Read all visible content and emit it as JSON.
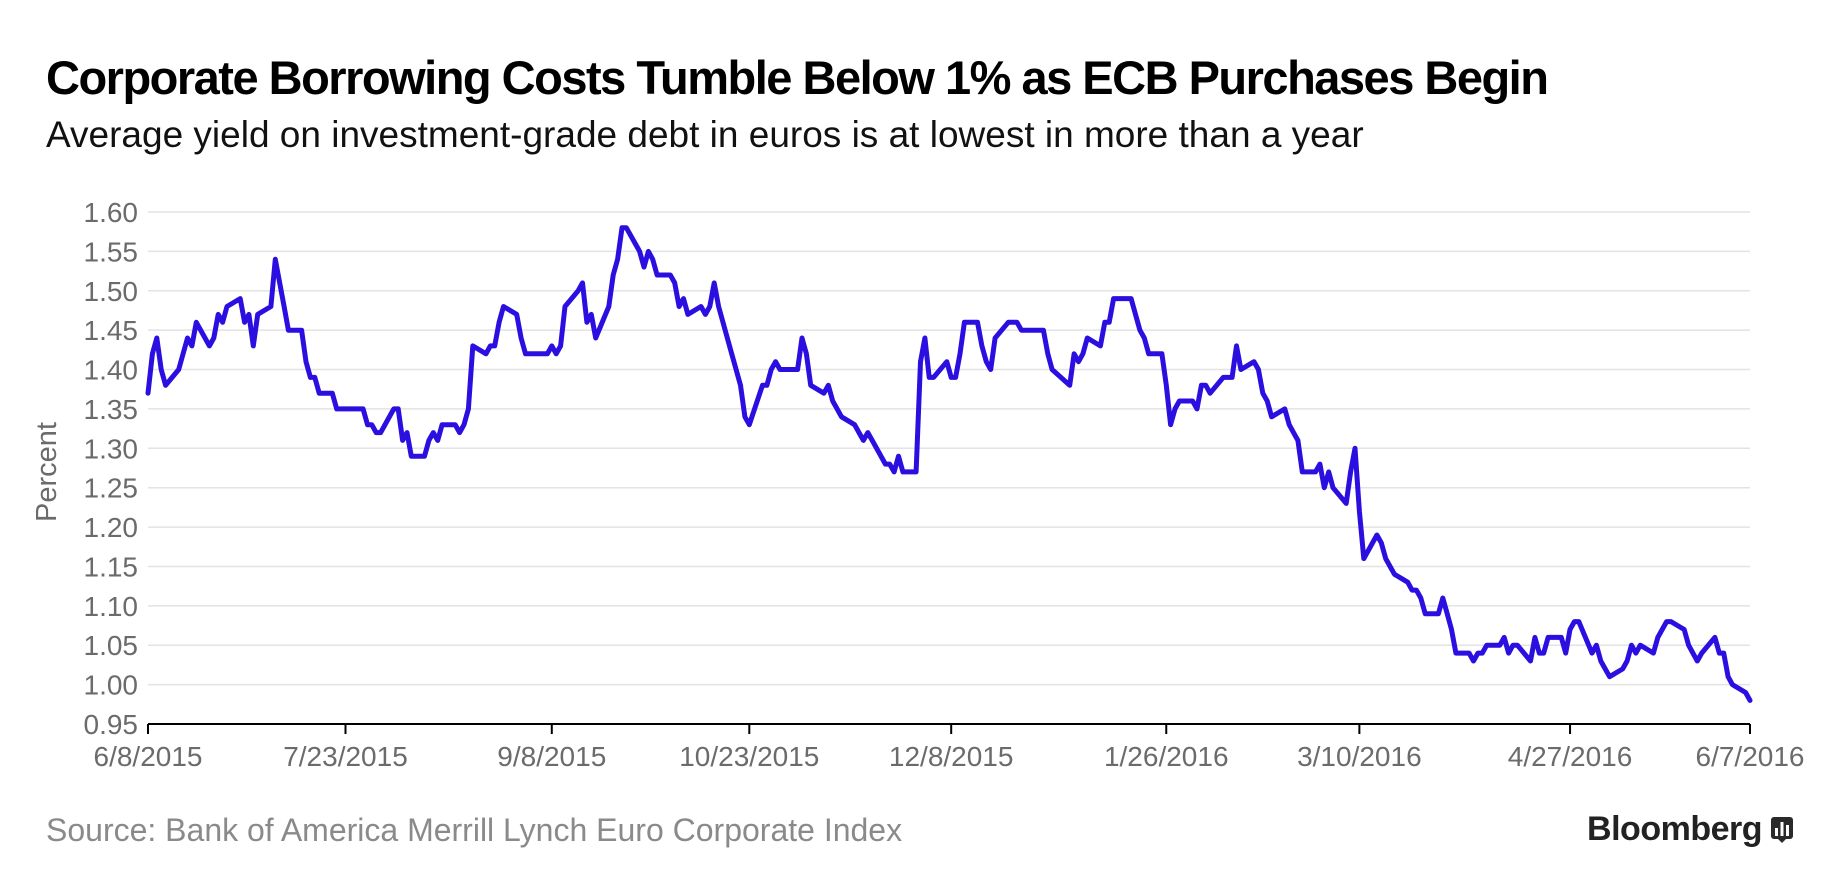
{
  "header": {
    "title": "Corporate Borrowing Costs Tumble Below 1% as ECB Purchases Begin",
    "subtitle": "Average yield on investment-grade debt in euros is at lowest in more than a year"
  },
  "footer": {
    "source": "Source: Bank of America Merrill Lynch Euro Corporate Index",
    "brand": "Bloomberg",
    "brand_icon": "bloomberg-chart-icon"
  },
  "colors": {
    "line": "#2b0fe0",
    "grid": "#e3e3e3",
    "axis": "#000000",
    "tick_text": "#6b6b6b"
  },
  "chart_data": {
    "type": "line",
    "title": "Corporate Borrowing Costs Tumble Below 1% as ECB Purchases Begin",
    "subtitle": "Average yield on investment-grade debt in euros is at lowest in more than a year",
    "xlabel": "",
    "ylabel": "Percent",
    "ylim": [
      0.95,
      1.6
    ],
    "yticks": [
      "0.95",
      "1.00",
      "1.05",
      "1.10",
      "1.15",
      "1.20",
      "1.25",
      "1.30",
      "1.35",
      "1.40",
      "1.45",
      "1.50",
      "1.55",
      "1.60"
    ],
    "xlim": [
      "2015-06-08",
      "2016-06-07"
    ],
    "xticks": [
      {
        "label": "6/8/2015",
        "date": "2015-06-08"
      },
      {
        "label": "7/23/2015",
        "date": "2015-07-23"
      },
      {
        "label": "9/8/2015",
        "date": "2015-09-08"
      },
      {
        "label": "10/23/2015",
        "date": "2015-10-23"
      },
      {
        "label": "12/8/2015",
        "date": "2015-12-08"
      },
      {
        "label": "1/26/2016",
        "date": "2016-01-26"
      },
      {
        "label": "3/10/2016",
        "date": "2016-03-10"
      },
      {
        "label": "4/27/2016",
        "date": "2016-04-27"
      },
      {
        "label": "6/7/2016",
        "date": "2016-06-07"
      }
    ],
    "grid": true,
    "legend": "none",
    "series": [
      {
        "points": [
          [
            "2015-06-08",
            1.37
          ],
          [
            "2015-06-09",
            1.42
          ],
          [
            "2015-06-10",
            1.44
          ],
          [
            "2015-06-11",
            1.4
          ],
          [
            "2015-06-12",
            1.38
          ],
          [
            "2015-06-15",
            1.4
          ],
          [
            "2015-06-17",
            1.44
          ],
          [
            "2015-06-18",
            1.43
          ],
          [
            "2015-06-19",
            1.46
          ],
          [
            "2015-06-22",
            1.43
          ],
          [
            "2015-06-23",
            1.44
          ],
          [
            "2015-06-24",
            1.47
          ],
          [
            "2015-06-25",
            1.46
          ],
          [
            "2015-06-26",
            1.48
          ],
          [
            "2015-06-29",
            1.49
          ],
          [
            "2015-06-30",
            1.46
          ],
          [
            "2015-07-01",
            1.47
          ],
          [
            "2015-07-02",
            1.43
          ],
          [
            "2015-07-03",
            1.47
          ],
          [
            "2015-07-06",
            1.48
          ],
          [
            "2015-07-07",
            1.54
          ],
          [
            "2015-07-08",
            1.51
          ],
          [
            "2015-07-09",
            1.48
          ],
          [
            "2015-07-10",
            1.45
          ],
          [
            "2015-07-13",
            1.45
          ],
          [
            "2015-07-14",
            1.41
          ],
          [
            "2015-07-15",
            1.39
          ],
          [
            "2015-07-16",
            1.39
          ],
          [
            "2015-07-17",
            1.37
          ],
          [
            "2015-07-20",
            1.37
          ],
          [
            "2015-07-21",
            1.35
          ],
          [
            "2015-07-22",
            1.35
          ],
          [
            "2015-07-23",
            1.35
          ],
          [
            "2015-07-24",
            1.35
          ],
          [
            "2015-07-27",
            1.35
          ],
          [
            "2015-07-28",
            1.33
          ],
          [
            "2015-07-29",
            1.33
          ],
          [
            "2015-07-30",
            1.32
          ],
          [
            "2015-07-31",
            1.32
          ],
          [
            "2015-08-03",
            1.35
          ],
          [
            "2015-08-04",
            1.35
          ],
          [
            "2015-08-05",
            1.31
          ],
          [
            "2015-08-06",
            1.32
          ],
          [
            "2015-08-07",
            1.29
          ],
          [
            "2015-08-10",
            1.29
          ],
          [
            "2015-08-11",
            1.31
          ],
          [
            "2015-08-12",
            1.32
          ],
          [
            "2015-08-13",
            1.31
          ],
          [
            "2015-08-14",
            1.33
          ],
          [
            "2015-08-17",
            1.33
          ],
          [
            "2015-08-18",
            1.32
          ],
          [
            "2015-08-19",
            1.33
          ],
          [
            "2015-08-20",
            1.35
          ],
          [
            "2015-08-21",
            1.43
          ],
          [
            "2015-08-24",
            1.42
          ],
          [
            "2015-08-25",
            1.43
          ],
          [
            "2015-08-26",
            1.43
          ],
          [
            "2015-08-27",
            1.46
          ],
          [
            "2015-08-28",
            1.48
          ],
          [
            "2015-08-31",
            1.47
          ],
          [
            "2015-09-01",
            1.44
          ],
          [
            "2015-09-02",
            1.42
          ],
          [
            "2015-09-03",
            1.42
          ],
          [
            "2015-09-04",
            1.42
          ],
          [
            "2015-09-07",
            1.42
          ],
          [
            "2015-09-08",
            1.43
          ],
          [
            "2015-09-09",
            1.42
          ],
          [
            "2015-09-10",
            1.43
          ],
          [
            "2015-09-11",
            1.48
          ],
          [
            "2015-09-14",
            1.5
          ],
          [
            "2015-09-15",
            1.51
          ],
          [
            "2015-09-16",
            1.46
          ],
          [
            "2015-09-17",
            1.47
          ],
          [
            "2015-09-18",
            1.44
          ],
          [
            "2015-09-21",
            1.48
          ],
          [
            "2015-09-22",
            1.52
          ],
          [
            "2015-09-23",
            1.54
          ],
          [
            "2015-09-24",
            1.58
          ],
          [
            "2015-09-25",
            1.58
          ],
          [
            "2015-09-28",
            1.55
          ],
          [
            "2015-09-29",
            1.53
          ],
          [
            "2015-09-30",
            1.55
          ],
          [
            "2015-10-01",
            1.54
          ],
          [
            "2015-10-02",
            1.52
          ],
          [
            "2015-10-05",
            1.52
          ],
          [
            "2015-10-06",
            1.51
          ],
          [
            "2015-10-07",
            1.48
          ],
          [
            "2015-10-08",
            1.49
          ],
          [
            "2015-10-09",
            1.47
          ],
          [
            "2015-10-12",
            1.48
          ],
          [
            "2015-10-13",
            1.47
          ],
          [
            "2015-10-14",
            1.48
          ],
          [
            "2015-10-15",
            1.51
          ],
          [
            "2015-10-16",
            1.48
          ],
          [
            "2015-10-19",
            1.42
          ],
          [
            "2015-10-20",
            1.4
          ],
          [
            "2015-10-21",
            1.38
          ],
          [
            "2015-10-22",
            1.34
          ],
          [
            "2015-10-23",
            1.33
          ],
          [
            "2015-10-26",
            1.38
          ],
          [
            "2015-10-27",
            1.38
          ],
          [
            "2015-10-28",
            1.4
          ],
          [
            "2015-10-29",
            1.41
          ],
          [
            "2015-10-30",
            1.4
          ],
          [
            "2015-11-02",
            1.4
          ],
          [
            "2015-11-03",
            1.4
          ],
          [
            "2015-11-04",
            1.44
          ],
          [
            "2015-11-05",
            1.42
          ],
          [
            "2015-11-06",
            1.38
          ],
          [
            "2015-11-09",
            1.37
          ],
          [
            "2015-11-10",
            1.38
          ],
          [
            "2015-11-11",
            1.36
          ],
          [
            "2015-11-12",
            1.35
          ],
          [
            "2015-11-13",
            1.34
          ],
          [
            "2015-11-16",
            1.33
          ],
          [
            "2015-11-17",
            1.32
          ],
          [
            "2015-11-18",
            1.31
          ],
          [
            "2015-11-19",
            1.32
          ],
          [
            "2015-11-20",
            1.31
          ],
          [
            "2015-11-23",
            1.28
          ],
          [
            "2015-11-24",
            1.28
          ],
          [
            "2015-11-25",
            1.27
          ],
          [
            "2015-11-26",
            1.29
          ],
          [
            "2015-11-27",
            1.27
          ],
          [
            "2015-11-30",
            1.27
          ],
          [
            "2015-12-01",
            1.41
          ],
          [
            "2015-12-02",
            1.44
          ],
          [
            "2015-12-03",
            1.39
          ],
          [
            "2015-12-04",
            1.39
          ],
          [
            "2015-12-07",
            1.41
          ],
          [
            "2015-12-08",
            1.39
          ],
          [
            "2015-12-09",
            1.39
          ],
          [
            "2015-12-10",
            1.42
          ],
          [
            "2015-12-11",
            1.46
          ],
          [
            "2015-12-14",
            1.46
          ],
          [
            "2015-12-15",
            1.43
          ],
          [
            "2015-12-16",
            1.41
          ],
          [
            "2015-12-17",
            1.4
          ],
          [
            "2015-12-18",
            1.44
          ],
          [
            "2015-12-21",
            1.46
          ],
          [
            "2015-12-22",
            1.46
          ],
          [
            "2015-12-23",
            1.46
          ],
          [
            "2015-12-24",
            1.45
          ],
          [
            "2015-12-28",
            1.45
          ],
          [
            "2015-12-29",
            1.45
          ],
          [
            "2015-12-30",
            1.42
          ],
          [
            "2015-12-31",
            1.4
          ],
          [
            "2016-01-04",
            1.38
          ],
          [
            "2016-01-05",
            1.42
          ],
          [
            "2016-01-06",
            1.41
          ],
          [
            "2016-01-07",
            1.42
          ],
          [
            "2016-01-08",
            1.44
          ],
          [
            "2016-01-11",
            1.43
          ],
          [
            "2016-01-12",
            1.46
          ],
          [
            "2016-01-13",
            1.46
          ],
          [
            "2016-01-14",
            1.49
          ],
          [
            "2016-01-15",
            1.49
          ],
          [
            "2016-01-18",
            1.49
          ],
          [
            "2016-01-19",
            1.47
          ],
          [
            "2016-01-20",
            1.45
          ],
          [
            "2016-01-21",
            1.44
          ],
          [
            "2016-01-22",
            1.42
          ],
          [
            "2016-01-25",
            1.42
          ],
          [
            "2016-01-26",
            1.38
          ],
          [
            "2016-01-27",
            1.33
          ],
          [
            "2016-01-28",
            1.35
          ],
          [
            "2016-01-29",
            1.36
          ],
          [
            "2016-02-01",
            1.36
          ],
          [
            "2016-02-02",
            1.35
          ],
          [
            "2016-02-03",
            1.38
          ],
          [
            "2016-02-04",
            1.38
          ],
          [
            "2016-02-05",
            1.37
          ],
          [
            "2016-02-08",
            1.39
          ],
          [
            "2016-02-09",
            1.39
          ],
          [
            "2016-02-10",
            1.39
          ],
          [
            "2016-02-11",
            1.43
          ],
          [
            "2016-02-12",
            1.4
          ],
          [
            "2016-02-15",
            1.41
          ],
          [
            "2016-02-16",
            1.4
          ],
          [
            "2016-02-17",
            1.37
          ],
          [
            "2016-02-18",
            1.36
          ],
          [
            "2016-02-19",
            1.34
          ],
          [
            "2016-02-22",
            1.35
          ],
          [
            "2016-02-23",
            1.33
          ],
          [
            "2016-02-24",
            1.32
          ],
          [
            "2016-02-25",
            1.31
          ],
          [
            "2016-02-26",
            1.27
          ],
          [
            "2016-02-29",
            1.27
          ],
          [
            "2016-03-01",
            1.28
          ],
          [
            "2016-03-02",
            1.25
          ],
          [
            "2016-03-03",
            1.27
          ],
          [
            "2016-03-04",
            1.25
          ],
          [
            "2016-03-07",
            1.23
          ],
          [
            "2016-03-08",
            1.27
          ],
          [
            "2016-03-09",
            1.3
          ],
          [
            "2016-03-10",
            1.22
          ],
          [
            "2016-03-11",
            1.16
          ],
          [
            "2016-03-14",
            1.19
          ],
          [
            "2016-03-15",
            1.18
          ],
          [
            "2016-03-16",
            1.16
          ],
          [
            "2016-03-17",
            1.15
          ],
          [
            "2016-03-18",
            1.14
          ],
          [
            "2016-03-21",
            1.13
          ],
          [
            "2016-03-22",
            1.12
          ],
          [
            "2016-03-23",
            1.12
          ],
          [
            "2016-03-24",
            1.11
          ],
          [
            "2016-03-25",
            1.09
          ],
          [
            "2016-03-28",
            1.09
          ],
          [
            "2016-03-29",
            1.11
          ],
          [
            "2016-03-30",
            1.09
          ],
          [
            "2016-03-31",
            1.07
          ],
          [
            "2016-04-01",
            1.04
          ],
          [
            "2016-04-04",
            1.04
          ],
          [
            "2016-04-05",
            1.03
          ],
          [
            "2016-04-06",
            1.04
          ],
          [
            "2016-04-07",
            1.04
          ],
          [
            "2016-04-08",
            1.05
          ],
          [
            "2016-04-11",
            1.05
          ],
          [
            "2016-04-12",
            1.06
          ],
          [
            "2016-04-13",
            1.04
          ],
          [
            "2016-04-14",
            1.05
          ],
          [
            "2016-04-15",
            1.05
          ],
          [
            "2016-04-18",
            1.03
          ],
          [
            "2016-04-19",
            1.06
          ],
          [
            "2016-04-20",
            1.04
          ],
          [
            "2016-04-21",
            1.04
          ],
          [
            "2016-04-22",
            1.06
          ],
          [
            "2016-04-25",
            1.06
          ],
          [
            "2016-04-26",
            1.04
          ],
          [
            "2016-04-27",
            1.07
          ],
          [
            "2016-04-28",
            1.08
          ],
          [
            "2016-04-29",
            1.08
          ],
          [
            "2016-05-02",
            1.04
          ],
          [
            "2016-05-03",
            1.05
          ],
          [
            "2016-05-04",
            1.03
          ],
          [
            "2016-05-05",
            1.02
          ],
          [
            "2016-05-06",
            1.01
          ],
          [
            "2016-05-09",
            1.02
          ],
          [
            "2016-05-10",
            1.03
          ],
          [
            "2016-05-11",
            1.05
          ],
          [
            "2016-05-12",
            1.04
          ],
          [
            "2016-05-13",
            1.05
          ],
          [
            "2016-05-16",
            1.04
          ],
          [
            "2016-05-17",
            1.06
          ],
          [
            "2016-05-18",
            1.07
          ],
          [
            "2016-05-19",
            1.08
          ],
          [
            "2016-05-20",
            1.08
          ],
          [
            "2016-05-23",
            1.07
          ],
          [
            "2016-05-24",
            1.05
          ],
          [
            "2016-05-25",
            1.04
          ],
          [
            "2016-05-26",
            1.03
          ],
          [
            "2016-05-27",
            1.04
          ],
          [
            "2016-05-30",
            1.06
          ],
          [
            "2016-05-31",
            1.04
          ],
          [
            "2016-06-01",
            1.04
          ],
          [
            "2016-06-02",
            1.01
          ],
          [
            "2016-06-03",
            1.0
          ],
          [
            "2016-06-06",
            0.99
          ],
          [
            "2016-06-07",
            0.98
          ]
        ]
      }
    ]
  }
}
